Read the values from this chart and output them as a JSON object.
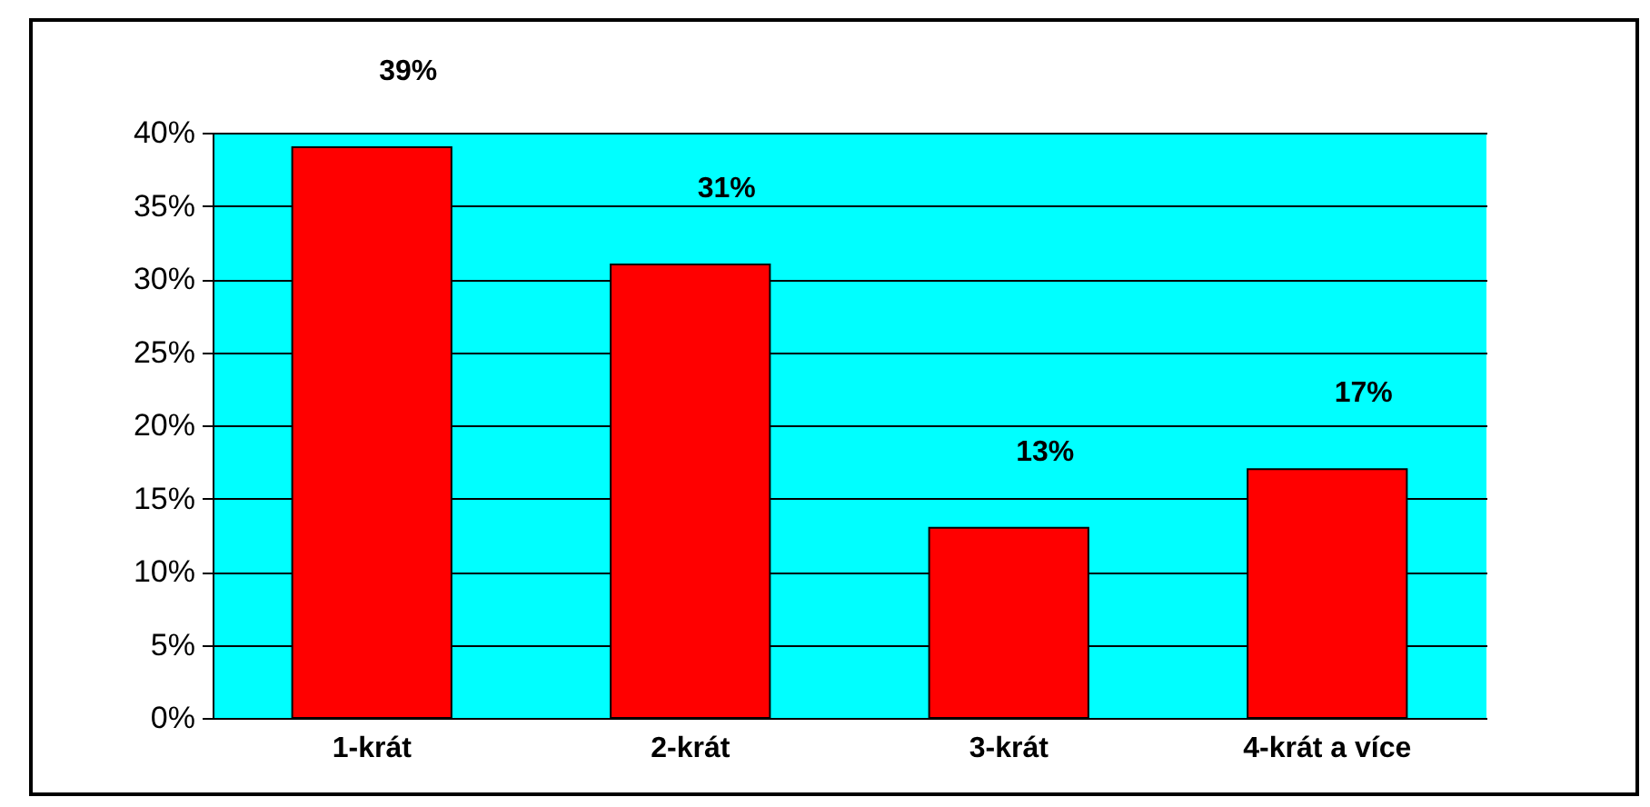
{
  "chart_data": {
    "type": "bar",
    "categories": [
      "1-krát",
      "2-krát",
      "3-krát",
      "4-krát a více"
    ],
    "values": [
      39,
      31,
      13,
      17
    ],
    "color": "#ff0000",
    "value_labels": [
      "39%",
      "31%",
      "13%",
      "17%"
    ],
    "ylim": [
      0,
      40
    ],
    "yticks": [
      {
        "value": 0,
        "label": "0%"
      },
      {
        "value": 5,
        "label": "5%"
      },
      {
        "value": 10,
        "label": "10%"
      },
      {
        "value": 15,
        "label": "15%"
      },
      {
        "value": 20,
        "label": "20%"
      },
      {
        "value": 25,
        "label": "25%"
      },
      {
        "value": 30,
        "label": "30%"
      },
      {
        "value": 35,
        "label": "35%"
      },
      {
        "value": 40,
        "label": "40%"
      }
    ],
    "grid": "y"
  }
}
